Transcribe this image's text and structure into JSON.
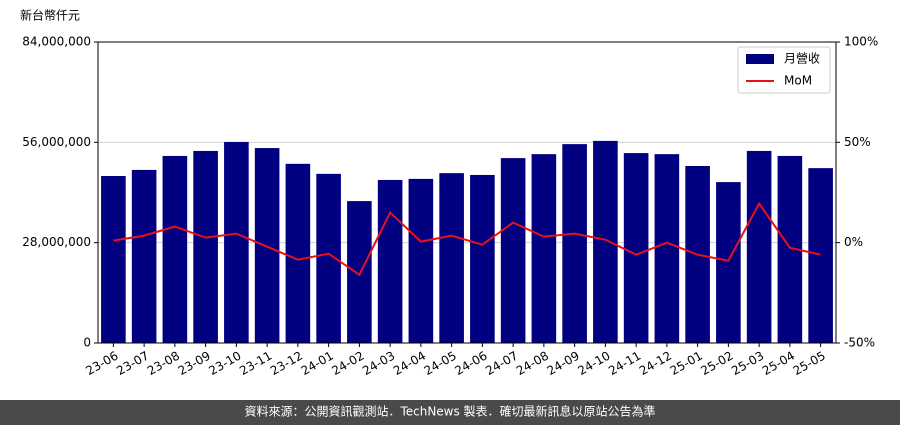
{
  "chart_data": {
    "type": "bar",
    "y_label": "新台幣仟元",
    "categories": [
      "23-06",
      "23-07",
      "23-08",
      "23-09",
      "23-10",
      "23-11",
      "23-12",
      "24-01",
      "24-02",
      "24-03",
      "24-04",
      "24-05",
      "24-06",
      "24-07",
      "24-08",
      "24-09",
      "24-10",
      "24-11",
      "24-12",
      "25-01",
      "25-02",
      "25-03",
      "25-04",
      "25-05"
    ],
    "series": [
      {
        "name": "月營收",
        "type": "bar",
        "color": "#000080",
        "values": [
          46600000,
          48300000,
          52200000,
          53600000,
          56100000,
          54400000,
          50000000,
          47200000,
          39600000,
          45500000,
          45800000,
          47400000,
          46900000,
          51600000,
          52700000,
          55500000,
          56400000,
          53000000,
          52700000,
          49400000,
          44900000,
          53600000,
          52200000,
          48800000
        ]
      },
      {
        "name": "MoM",
        "type": "line",
        "color": "#e8101a",
        "axis": "y2",
        "values": [
          1,
          3.5,
          8,
          2.5,
          4.5,
          -2,
          -8.5,
          -5.5,
          -16,
          15,
          0.5,
          3.5,
          -1,
          10,
          3,
          4.5,
          1.5,
          -6,
          0,
          -6,
          -9,
          19.5,
          -2.5,
          -6
        ]
      }
    ],
    "ylim": [
      0,
      84000000
    ],
    "yticks": [
      {
        "value": 0,
        "label": "0"
      },
      {
        "value": 28000000,
        "label": "28,000,000"
      },
      {
        "value": 56000000,
        "label": "56,000,000"
      },
      {
        "value": 84000000,
        "label": "84,000,000"
      }
    ],
    "y2lim": [
      -50,
      100
    ],
    "y2ticks": [
      {
        "value": -50,
        "label": "-50%"
      },
      {
        "value": 0,
        "label": "0%"
      },
      {
        "value": 50,
        "label": "50%"
      },
      {
        "value": 100,
        "label": "100%"
      }
    ],
    "grid": true,
    "legend": "upper right"
  },
  "footer": {
    "text": "資料來源：公開資訊觀測站．TechNews 製表．確切最新訊息以原站公告為準"
  }
}
